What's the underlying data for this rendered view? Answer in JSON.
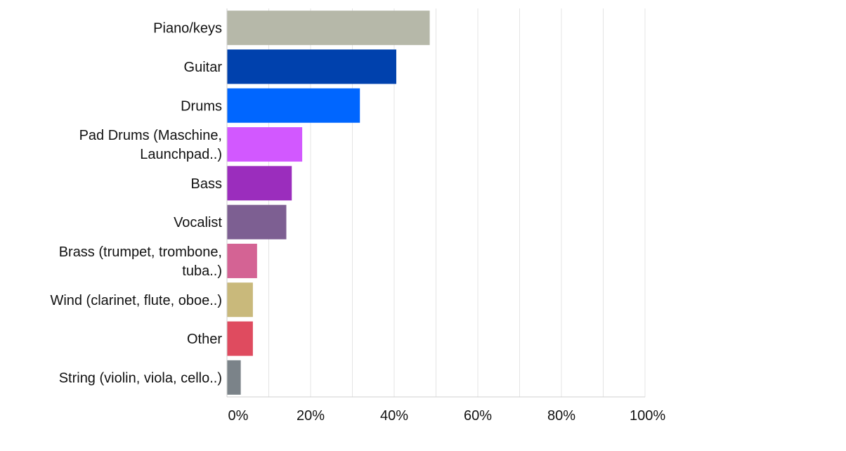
{
  "chart_data": {
    "type": "bar",
    "orientation": "horizontal",
    "title": "",
    "xlabel": "",
    "ylabel": "",
    "xlim": [
      0,
      100
    ],
    "grid": true,
    "categories": [
      [
        "Piano/keys"
      ],
      [
        "Guitar"
      ],
      [
        "Drums"
      ],
      [
        "Pad Drums (Maschine,",
        "Launchpad..)"
      ],
      [
        "Bass"
      ],
      [
        "Vocalist"
      ],
      [
        "Brass (trumpet, trombone,",
        "tuba..)"
      ],
      [
        "Wind (clarinet, flute, oboe..)"
      ],
      [
        "Other"
      ],
      [
        "String (violin, viola, cello..)"
      ]
    ],
    "values": [
      48.5,
      40.5,
      31.8,
      18.0,
      15.5,
      14.2,
      7.2,
      6.2,
      6.2,
      3.3
    ],
    "colors": [
      "#b6b8a9",
      "#0041ad",
      "#0066ff",
      "#d258ff",
      "#9b2dbd",
      "#7d5f92",
      "#d46394",
      "#c9b97b",
      "#df4b5f",
      "#7b8389"
    ],
    "ticks": [
      "0%",
      "20%",
      "40%",
      "60%",
      "80%",
      "100%"
    ]
  }
}
